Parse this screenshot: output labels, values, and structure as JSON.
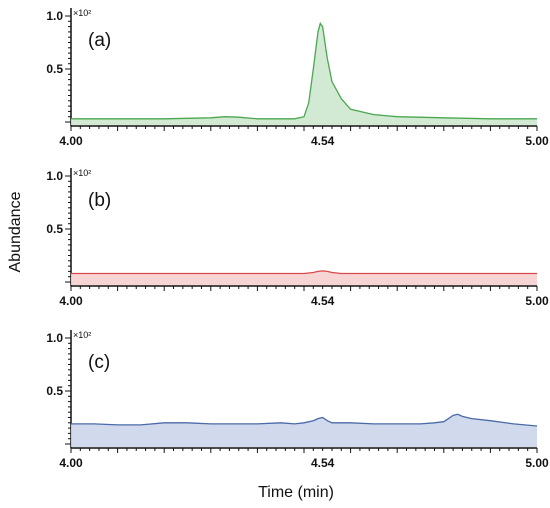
{
  "chart_data": {
    "type": "line",
    "ylabel": "Abundance",
    "xlabel": "Time (min)",
    "panels": [
      {
        "label": "(a)",
        "color": "#4aa84f",
        "fill": "#cde8cf",
        "ylim": [
          0,
          100
        ],
        "yticks": [
          "1.0",
          "0.5"
        ],
        "y_multiplier": "×10²",
        "x_ticks": [
          "4.00",
          "4.54",
          "5.00"
        ],
        "series": {
          "x": [
            4.0,
            4.1,
            4.2,
            4.3,
            4.33,
            4.36,
            4.4,
            4.44,
            4.48,
            4.5,
            4.51,
            4.52,
            4.53,
            4.535,
            4.54,
            4.55,
            4.56,
            4.58,
            4.6,
            4.65,
            4.7,
            4.8,
            4.9,
            5.0
          ],
          "y": [
            3,
            3,
            3,
            4,
            5,
            4.5,
            3,
            3,
            3,
            5,
            18,
            50,
            85,
            93,
            90,
            60,
            38,
            22,
            12,
            7,
            5,
            4,
            3,
            3
          ]
        }
      },
      {
        "label": "(b)",
        "color": "#d94a4a",
        "fill": "#f6d0d0",
        "ylim": [
          0,
          100
        ],
        "yticks": [
          "1.0",
          "0.5"
        ],
        "y_multiplier": "×10²",
        "x_ticks": [
          "4.00",
          "4.54",
          "5.00"
        ],
        "series": {
          "x": [
            4.0,
            4.2,
            4.4,
            4.5,
            4.52,
            4.53,
            4.54,
            4.55,
            4.56,
            4.58,
            4.6,
            4.8,
            5.0
          ],
          "y": [
            8,
            8,
            8,
            8,
            9,
            10,
            10.5,
            10,
            9,
            8,
            8,
            8,
            8
          ]
        }
      },
      {
        "label": "(c)",
        "color": "#4a6aa8",
        "fill": "#ccd6ea",
        "ylim": [
          0,
          100
        ],
        "yticks": [
          "1.0",
          "0.5"
        ],
        "y_multiplier": "×10²",
        "x_ticks": [
          "4.00",
          "4.54",
          "5.00"
        ],
        "series": {
          "x": [
            4.0,
            4.05,
            4.1,
            4.15,
            4.2,
            4.25,
            4.3,
            4.35,
            4.4,
            4.45,
            4.48,
            4.5,
            4.52,
            4.53,
            4.54,
            4.55,
            4.56,
            4.6,
            4.65,
            4.7,
            4.75,
            4.78,
            4.8,
            4.81,
            4.82,
            4.83,
            4.84,
            4.86,
            4.9,
            4.95,
            5.0
          ],
          "y": [
            19,
            19,
            18,
            18,
            20,
            20,
            19,
            19,
            19,
            20,
            19,
            20,
            22,
            24,
            25,
            22,
            20,
            20,
            19,
            19,
            19,
            20,
            21,
            24,
            27,
            28,
            26,
            24,
            22,
            19,
            17
          ]
        }
      }
    ]
  }
}
